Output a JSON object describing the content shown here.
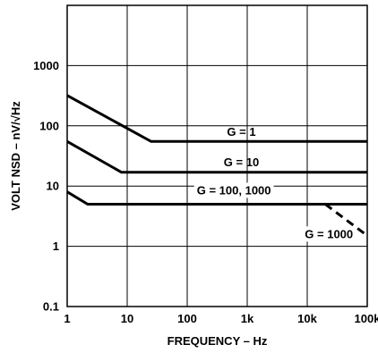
{
  "chart_data": {
    "type": "line",
    "xscale": "log",
    "yscale": "log",
    "xlim": [
      1,
      100000
    ],
    "ylim": [
      0.1,
      10000
    ],
    "grid": true,
    "xlabel": "FREQUENCY – Hz",
    "ylabel": "VOLT NSD – nV/√Hz",
    "x_ticks": [
      {
        "value": 1,
        "label": "1"
      },
      {
        "value": 10,
        "label": "10"
      },
      {
        "value": 100,
        "label": "100"
      },
      {
        "value": 1000,
        "label": "1k"
      },
      {
        "value": 10000,
        "label": "10k"
      },
      {
        "value": 100000,
        "label": "100k"
      }
    ],
    "y_ticks": [
      {
        "value": 0.1,
        "label": "0.1"
      },
      {
        "value": 1,
        "label": "1"
      },
      {
        "value": 10,
        "label": "10"
      },
      {
        "value": 100,
        "label": "100"
      },
      {
        "value": 1000,
        "label": "1000"
      },
      {
        "value": 10000,
        "label": ""
      }
    ],
    "series": [
      {
        "id": "g1",
        "style": "solid",
        "x": [
          1,
          25,
          100000
        ],
        "y": [
          320,
          55,
          55
        ]
      },
      {
        "id": "g10",
        "style": "solid",
        "x": [
          1,
          8,
          100000
        ],
        "y": [
          55,
          17,
          17
        ]
      },
      {
        "id": "g100",
        "style": "solid",
        "x": [
          1,
          2.2,
          100000
        ],
        "y": [
          8,
          5,
          5
        ]
      },
      {
        "id": "g1000",
        "style": "dashed",
        "x": [
          20000,
          100000
        ],
        "y": [
          5,
          1.5
        ]
      }
    ],
    "annotations": [
      {
        "text": "G = 1",
        "x": 800,
        "y": 80,
        "bg": false
      },
      {
        "text": "G = 10",
        "x": 800,
        "y": 25,
        "bg": false
      },
      {
        "text": "G = 100, 1000",
        "x": 600,
        "y": 8.5,
        "bg": true
      },
      {
        "text": "G = 1000",
        "x": 23000,
        "y": 1.6,
        "bg": true
      }
    ]
  }
}
